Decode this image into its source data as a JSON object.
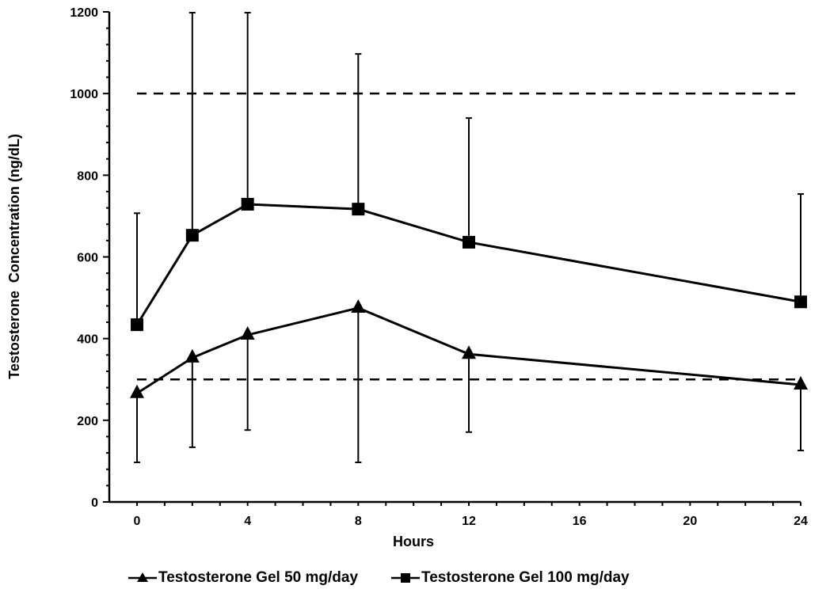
{
  "chart_data": {
    "type": "line",
    "title": "",
    "xlabel": "Hours",
    "ylabel": "Testosterone  Concentration (ng/dL)",
    "xlim": [
      -1.25,
      24
    ],
    "ylim": [
      0,
      1200
    ],
    "x_ticks": [
      0,
      4,
      8,
      12,
      16,
      20,
      24
    ],
    "x_tick_labels": [
      "0",
      "4",
      "8",
      "12",
      "16",
      "20",
      "24"
    ],
    "y_ticks": [
      0,
      200,
      400,
      600,
      800,
      1000,
      1200
    ],
    "y_tick_labels": [
      "0",
      "200",
      "400",
      "600",
      "800",
      "1000",
      "1200"
    ],
    "grid": false,
    "legend_position": "bottom",
    "reference_lines": [
      {
        "y": 1000,
        "style": "dashed"
      },
      {
        "y": 300,
        "style": "dashed"
      }
    ],
    "series": [
      {
        "name": "Testosterone Gel 50 mg/day",
        "marker": "triangle",
        "color": "#000000",
        "x": [
          0,
          2,
          4,
          8,
          12,
          24
        ],
        "values": [
          266,
          353,
          409,
          475,
          362,
          287
        ],
        "error_lower": [
          97,
          134,
          176,
          97,
          171,
          126
        ]
      },
      {
        "name": "Testosterone Gel 100 mg/day",
        "marker": "square",
        "color": "#000000",
        "x": [
          0,
          2,
          4,
          8,
          12,
          24
        ],
        "values": [
          434,
          653,
          729,
          717,
          636,
          490
        ],
        "error_upper": [
          707,
          1198,
          1198,
          1097,
          940,
          754
        ]
      }
    ]
  }
}
